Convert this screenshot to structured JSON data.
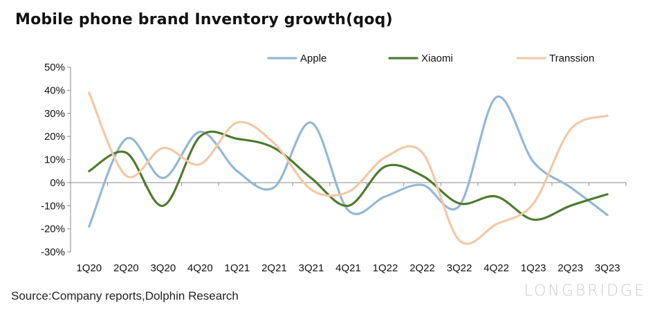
{
  "title": "Mobile phone brand Inventory growth(qoq)",
  "source": "Source:Company reports,Dolphin Research",
  "watermark": "LONGBRIDGE",
  "chart_data": {
    "type": "line",
    "title": "Mobile phone brand Inventory growth(qoq)",
    "xlabel": "",
    "ylabel": "",
    "categories": [
      "1Q20",
      "2Q20",
      "3Q20",
      "4Q20",
      "1Q21",
      "2Q21",
      "3Q21",
      "4Q21",
      "1Q22",
      "2Q22",
      "3Q22",
      "4Q22",
      "1Q23",
      "2Q23",
      "3Q23"
    ],
    "yticks": [
      "50%",
      "40%",
      "30%",
      "20%",
      "10%",
      "0%",
      "-10%",
      "-20%",
      "-30%"
    ],
    "ylim": [
      -30,
      50
    ],
    "grid": false,
    "legend_position": "top",
    "series": [
      {
        "name": "Apple",
        "color": "#93b7d6",
        "values": [
          -19,
          19,
          2,
          22,
          5,
          -2,
          26,
          -12,
          -6,
          -1,
          -10,
          37,
          9,
          -2,
          -14
        ]
      },
      {
        "name": "Xiaomi",
        "color": "#4e7a2e",
        "values": [
          5,
          13,
          -10,
          20,
          19,
          15,
          2,
          -10,
          7,
          3,
          -9,
          -6,
          -16,
          -10,
          -5
        ]
      },
      {
        "name": "Transsion",
        "color": "#f2c8a5",
        "values": [
          39,
          3,
          15,
          8,
          26,
          17,
          -3,
          -4,
          11,
          13,
          -25,
          -18,
          -9,
          23,
          29
        ]
      }
    ]
  }
}
